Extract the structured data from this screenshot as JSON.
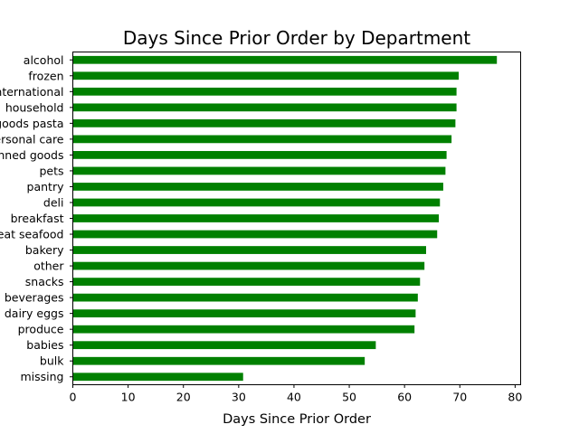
{
  "chart_data": {
    "type": "bar",
    "orientation": "horizontal",
    "title": "Days Since Prior Order by Department",
    "xlabel": "Days Since Prior Order",
    "ylabel": "",
    "xlim": [
      0,
      81
    ],
    "xticks": [
      0,
      10,
      20,
      30,
      40,
      50,
      60,
      70,
      80
    ],
    "grid": false,
    "bar_color": "#008000",
    "categories": [
      "alcohol",
      "frozen",
      "international",
      "household",
      "dry goods pasta",
      "personal care",
      "canned goods",
      "pets",
      "pantry",
      "deli",
      "breakfast",
      "meat seafood",
      "bakery",
      "other",
      "snacks",
      "beverages",
      "dairy eggs",
      "produce",
      "babies",
      "bulk",
      "missing"
    ],
    "values": [
      76.7,
      69.8,
      69.4,
      69.4,
      69.2,
      68.5,
      67.6,
      67.4,
      67.0,
      66.4,
      66.2,
      65.9,
      63.9,
      63.6,
      62.8,
      62.4,
      62.0,
      61.8,
      54.8,
      52.8,
      30.8
    ]
  }
}
